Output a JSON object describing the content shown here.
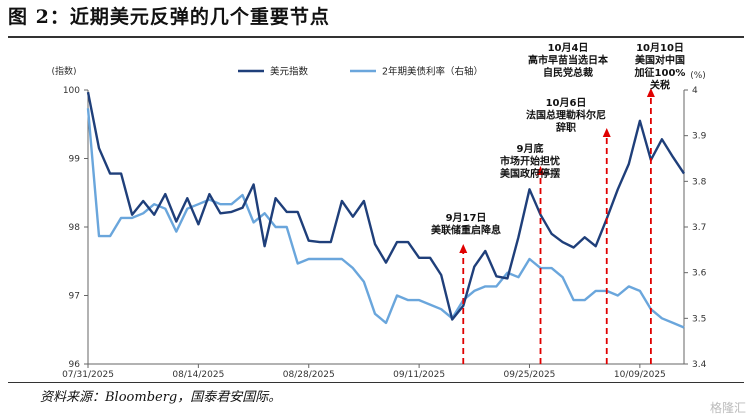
{
  "title": "图 2：近期美元反弹的几个重要节点",
  "source": "资料来源：Bloomberg，国泰君安国际。",
  "watermark": "格隆汇",
  "colors": {
    "dxy": "#1f3f7a",
    "yield": "#6aa6dc",
    "arrow": "#e00000"
  },
  "chart_data": {
    "type": "line",
    "y_left_label": "(指数)",
    "y_right_label": "(%)",
    "y_left_lim": [
      96,
      100
    ],
    "y_right_lim": [
      3.4,
      4.0
    ],
    "y_left_ticks": [
      "100",
      "99",
      "98",
      "97",
      "96"
    ],
    "y_right_ticks": [
      "4",
      "3.9",
      "3.8",
      "3.7",
      "3.6",
      "3.5",
      "3.4"
    ],
    "x_tick_labels": [
      "07/31/2025",
      "08/14/2025",
      "08/28/2025",
      "09/11/2025",
      "09/25/2025",
      "10/09/2025"
    ],
    "series": [
      {
        "name": "美元指数",
        "axis": "left",
        "x": [
          "07/31",
          "08/01",
          "08/04",
          "08/05",
          "08/06",
          "08/07",
          "08/08",
          "08/11",
          "08/12",
          "08/13",
          "08/14",
          "08/15",
          "08/18",
          "08/19",
          "08/20",
          "08/21",
          "08/22",
          "08/25",
          "08/26",
          "08/27",
          "08/28",
          "08/29",
          "09/01",
          "09/02",
          "09/03",
          "09/04",
          "09/05",
          "09/08",
          "09/09",
          "09/10",
          "09/11",
          "09/12",
          "09/15",
          "09/16",
          "09/17",
          "09/18",
          "09/19",
          "09/22",
          "09/23",
          "09/24",
          "09/25",
          "09/26",
          "09/29",
          "09/30",
          "10/01",
          "10/02",
          "10/03",
          "10/06",
          "10/07",
          "10/08",
          "10/09",
          "10/10",
          "10/13",
          "10/14",
          "10/15"
        ],
        "values": [
          99.97,
          99.15,
          98.78,
          98.78,
          98.18,
          98.38,
          98.18,
          98.48,
          98.08,
          98.42,
          98.04,
          98.48,
          98.2,
          98.22,
          98.28,
          98.62,
          97.72,
          98.42,
          98.22,
          98.22,
          97.8,
          97.78,
          97.78,
          98.38,
          98.15,
          98.38,
          97.75,
          97.48,
          97.78,
          97.78,
          97.55,
          97.55,
          97.3,
          96.65,
          96.85,
          97.42,
          97.65,
          97.28,
          97.25,
          97.85,
          98.55,
          98.18,
          97.9,
          97.78,
          97.7,
          97.85,
          97.72,
          98.12,
          98.55,
          98.92,
          99.55,
          98.98,
          99.28,
          99.02,
          98.78
        ]
      },
      {
        "name": "2年期美债利率（右轴）",
        "axis": "right",
        "x": [
          "07/31",
          "08/01",
          "08/04",
          "08/05",
          "08/06",
          "08/07",
          "08/08",
          "08/11",
          "08/12",
          "08/13",
          "08/14",
          "08/15",
          "08/18",
          "08/19",
          "08/20",
          "08/21",
          "08/22",
          "08/25",
          "08/26",
          "08/27",
          "08/28",
          "08/29",
          "09/01",
          "09/02",
          "09/03",
          "09/04",
          "09/05",
          "09/08",
          "09/09",
          "09/10",
          "09/11",
          "09/12",
          "09/15",
          "09/16",
          "09/17",
          "09/18",
          "09/19",
          "09/22",
          "09/23",
          "09/24",
          "09/25",
          "09/26",
          "09/29",
          "09/30",
          "10/01",
          "10/02",
          "10/03",
          "10/06",
          "10/07",
          "10/08",
          "10/09",
          "10/10",
          "10/13",
          "10/14",
          "10/15"
        ],
        "values": [
          3.96,
          3.68,
          3.68,
          3.72,
          3.72,
          3.73,
          3.75,
          3.74,
          3.69,
          3.74,
          3.75,
          3.76,
          3.75,
          3.75,
          3.77,
          3.71,
          3.73,
          3.7,
          3.7,
          3.62,
          3.63,
          3.63,
          3.63,
          3.63,
          3.61,
          3.58,
          3.51,
          3.49,
          3.55,
          3.54,
          3.54,
          3.53,
          3.52,
          3.5,
          3.54,
          3.56,
          3.57,
          3.57,
          3.6,
          3.59,
          3.63,
          3.61,
          3.61,
          3.59,
          3.54,
          3.54,
          3.56,
          3.56,
          3.55,
          3.57,
          3.56,
          3.52,
          3.5,
          3.49,
          3.48
        ]
      }
    ],
    "annotations": [
      {
        "date": "09/17",
        "lines": [
          "9月17日",
          "美联储重启降息"
        ]
      },
      {
        "date": "09/26",
        "lines": [
          "9月底",
          "市场开始担忧",
          "美国政府停摆"
        ]
      },
      {
        "date": "10/06",
        "lines": [
          "10月6日",
          "法国总理勒科尔尼",
          "辞职"
        ]
      },
      {
        "date": "10/06",
        "lines": [
          "10月4日",
          "高市早苗当选日本",
          "自民党总裁"
        ]
      },
      {
        "date": "10/10",
        "lines": [
          "10月10日",
          "美国对中国",
          "加征100%",
          "关税"
        ]
      }
    ]
  }
}
